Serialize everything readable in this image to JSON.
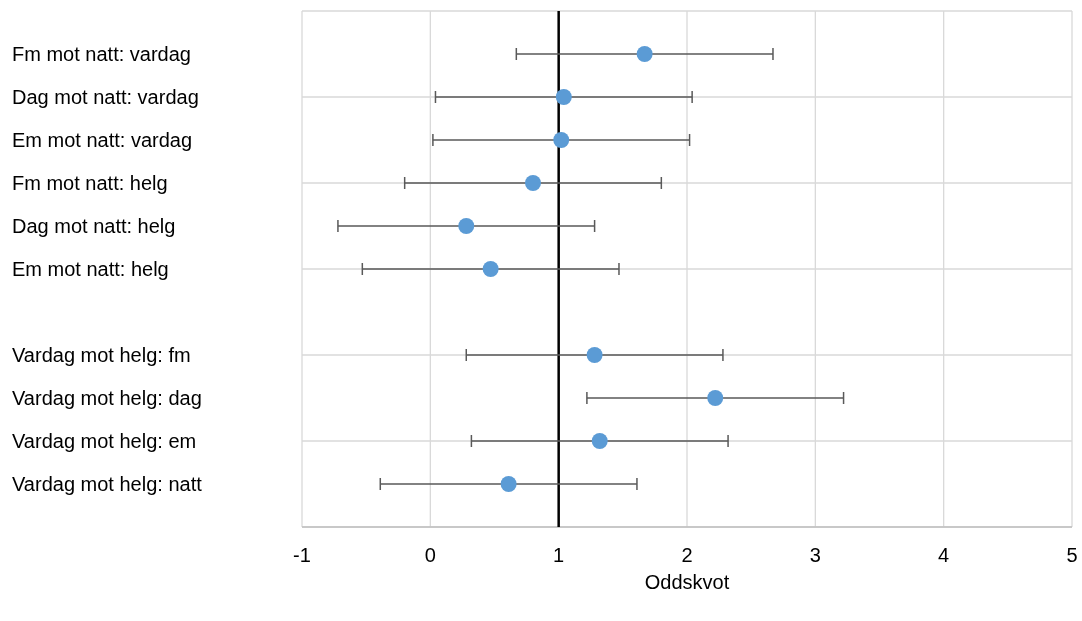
{
  "chart_data": {
    "type": "scatter",
    "orientation": "horizontal",
    "xlabel": "Oddskvot",
    "categories": [
      "Fm mot natt: vardag",
      "Dag mot natt: vardag",
      "Em mot natt: vardag",
      "Fm mot natt: helg",
      "Dag mot natt: helg",
      "Em mot natt: helg",
      null,
      "Vardag mot helg: fm",
      "Vardag mot helg: dag",
      "Vardag mot helg: em",
      "Vardag mot helg: natt"
    ],
    "values": [
      1.67,
      1.04,
      1.02,
      0.8,
      0.28,
      0.47,
      null,
      1.28,
      2.22,
      1.32,
      0.61
    ],
    "errors": [
      1,
      1,
      1,
      1,
      1,
      1,
      null,
      1,
      1,
      1,
      1
    ],
    "color": "#5b9bd5",
    "marker": "circle",
    "xlim": [
      -1,
      5
    ],
    "xticks": [
      -1,
      0,
      1,
      2,
      3,
      4,
      5
    ],
    "grid": true,
    "tick_labels": "x",
    "ref_lines": [
      {
        "axis": "x",
        "value": 1,
        "color": "#000000"
      }
    ]
  }
}
